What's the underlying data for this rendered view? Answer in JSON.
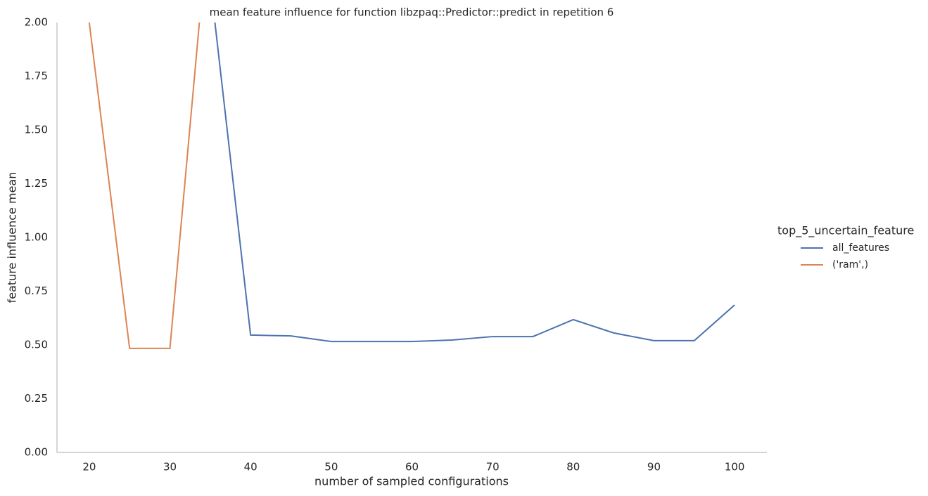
{
  "chart_data": {
    "type": "line",
    "title": "mean feature influence for function libzpaq::Predictor::predict in repetition 6",
    "x_label": "number of sampled configurations",
    "y_label": "feature influence mean",
    "legend_title": "top_5_uncertain_feature",
    "legend_position": "right",
    "grid": false,
    "x": [
      20,
      25,
      30,
      35,
      40,
      45,
      50,
      55,
      60,
      65,
      70,
      75,
      80,
      85,
      90,
      95,
      100
    ],
    "series": [
      {
        "name": "all_features",
        "color": "#4c72b0",
        "values": [
          null,
          null,
          null,
          2.19,
          0.546,
          0.542,
          0.516,
          0.516,
          0.516,
          0.523,
          0.539,
          0.539,
          0.618,
          0.556,
          0.52,
          0.52,
          0.686
        ]
      },
      {
        "name": "('ram',)",
        "color": "#dd8452",
        "values": [
          2.0,
          0.484,
          0.484,
          2.56,
          null,
          null,
          null,
          null,
          null,
          null,
          null,
          null,
          null,
          null,
          null,
          null,
          null
        ]
      }
    ],
    "xlim": [
      16,
      104
    ],
    "ylim": [
      0,
      2
    ],
    "xticks": [
      20,
      30,
      40,
      50,
      60,
      70,
      80,
      90,
      100
    ],
    "yticks": [
      {
        "value": 0,
        "label": "0.00"
      },
      {
        "value": 0.25,
        "label": "0.25"
      },
      {
        "value": 0.5,
        "label": "0.50"
      },
      {
        "value": 0.75,
        "label": "0.75"
      },
      {
        "value": 1,
        "label": "1.00"
      },
      {
        "value": 1.25,
        "label": "1.25"
      },
      {
        "value": 1.5,
        "label": "1.50"
      },
      {
        "value": 1.75,
        "label": "1.75"
      },
      {
        "value": 2,
        "label": "2.00"
      }
    ]
  }
}
